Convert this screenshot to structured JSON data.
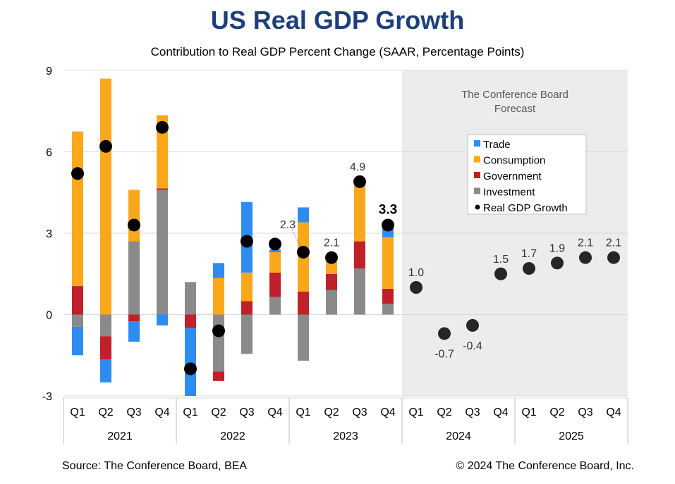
{
  "title": "US Real GDP Growth",
  "subtitle": "Contribution to Real GDP Percent Change (SAAR, Percentage Points)",
  "source": "Source: The Conference Board, BEA",
  "copyright": "© 2024 The Conference Board, Inc.",
  "forecast_label": [
    "The Conference Board",
    "Forecast"
  ],
  "colors": {
    "Trade": "#2e8bf0",
    "Consumption": "#f9a81c",
    "Government": "#c0202a",
    "Investment": "#8a8a8a",
    "growth": "#000000",
    "forecast_growth": "#262626",
    "forecast_bg": "#ececec",
    "title": "#1f3f7a"
  },
  "chart_data": {
    "type": "bar",
    "stacked": true,
    "title": "US Real GDP Growth",
    "ylim": [
      -3,
      9
    ],
    "yticks": [
      -3,
      0,
      3,
      6,
      9
    ],
    "grid": true,
    "categories": [
      "Q1",
      "Q2",
      "Q3",
      "Q4",
      "Q1",
      "Q2",
      "Q3",
      "Q4",
      "Q1",
      "Q2",
      "Q3",
      "Q4",
      "Q1",
      "Q2",
      "Q3",
      "Q4",
      "Q1",
      "Q2",
      "Q3",
      "Q4"
    ],
    "years": [
      "2021",
      "2022",
      "2023",
      "2024",
      "2025"
    ],
    "legend": [
      "Trade",
      "Consumption",
      "Government",
      "Investment",
      "Real GDP Growth"
    ],
    "series": [
      {
        "name": "Trade",
        "values": [
          -1.05,
          -0.85,
          -0.75,
          -0.4,
          -2.5,
          0.55,
          2.6,
          0.1,
          0.55,
          0,
          0,
          0.35,
          null,
          null,
          null,
          null,
          null,
          null,
          null,
          null
        ]
      },
      {
        "name": "Consumption",
        "values": [
          5.7,
          8.7,
          1.9,
          2.7,
          0,
          1.35,
          1.05,
          0.75,
          2.55,
          0.45,
          2.2,
          1.9,
          null,
          null,
          null,
          null,
          null,
          null,
          null,
          null
        ]
      },
      {
        "name": "Government",
        "values": [
          1.05,
          -0.85,
          -0.25,
          0.05,
          -0.5,
          -0.35,
          0.5,
          0.9,
          0.85,
          0.6,
          1.0,
          0.55,
          null,
          null,
          null,
          null,
          null,
          null,
          null,
          null
        ]
      },
      {
        "name": "Investment",
        "values": [
          -0.45,
          -0.8,
          2.7,
          4.6,
          1.2,
          -2.1,
          -1.45,
          0.65,
          -1.7,
          0.9,
          1.7,
          0.4,
          null,
          null,
          null,
          null,
          null,
          null,
          null,
          null
        ]
      }
    ],
    "growth": [
      5.2,
      6.2,
      3.3,
      6.9,
      -2.0,
      -0.6,
      2.7,
      2.6,
      2.3,
      2.1,
      4.9,
      3.3,
      1.0,
      -0.7,
      -0.4,
      1.5,
      1.7,
      1.9,
      2.1,
      2.1
    ],
    "labels": [
      "",
      "",
      "",
      "",
      "",
      "",
      "",
      "",
      "2.3",
      "2.1",
      "4.9",
      "3.3",
      "1.0",
      "-0.7",
      "-0.4",
      "1.5",
      "1.7",
      "1.9",
      "2.1",
      "2.1"
    ],
    "forecast_start_index": 12
  }
}
